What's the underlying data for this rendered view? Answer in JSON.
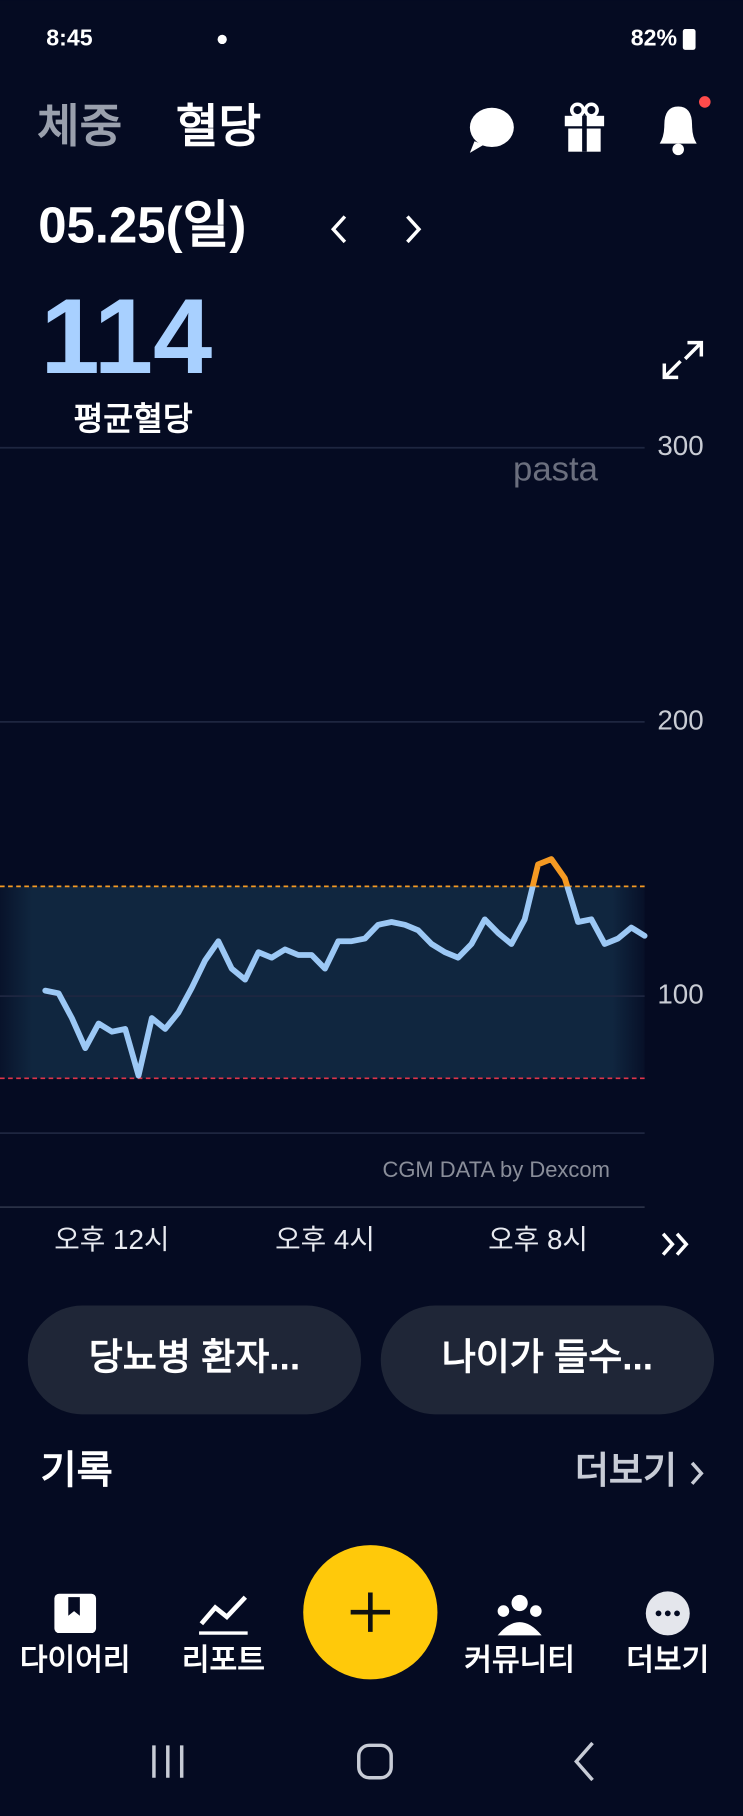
{
  "status_bar": {
    "time": "8:45",
    "battery": "82%"
  },
  "header": {
    "tabs": [
      "체중",
      "혈당"
    ]
  },
  "summary": {
    "date": "05.25(일)",
    "average": 114,
    "average_label": "평균혈당"
  },
  "chart_data": {
    "type": "line",
    "watermark": "pasta",
    "source": "CGM DATA by Dexcom",
    "xlim": [
      9.9,
      22
    ],
    "ylim": [
      23,
      305
    ],
    "yticks": [
      100,
      200,
      300
    ],
    "xticks": [
      {
        "value": 12,
        "label": "오후 12시"
      },
      {
        "value": 16,
        "label": "오후 4시"
      },
      {
        "value": 20,
        "label": "오후 8시"
      }
    ],
    "target_range": [
      70,
      140
    ],
    "high_color": "#f59a23",
    "low_line_color": "#e0344a",
    "grid": true,
    "series": [
      {
        "color": "#9cc8f5",
        "x": [
          10.75,
          11,
          11.25,
          11.5,
          11.75,
          12,
          12.25,
          12.5,
          12.75,
          13,
          13.25,
          13.5,
          13.75,
          14,
          14.25,
          14.5,
          14.75,
          15,
          15.25,
          15.5,
          15.75,
          16,
          16.25,
          16.5,
          16.75,
          17,
          17.25,
          17.5,
          17.75,
          18,
          18.25,
          18.5,
          18.75,
          19,
          19.25,
          19.5,
          19.75,
          20,
          20.25,
          20.5,
          20.75,
          21,
          21.25,
          21.5,
          21.75,
          22
        ],
        "values": [
          102,
          101,
          92,
          81,
          90,
          87,
          88,
          71,
          92,
          88,
          94,
          103,
          113,
          120,
          110,
          106,
          116,
          114,
          117,
          115,
          115,
          110,
          120,
          120,
          121,
          126,
          127,
          126,
          124,
          119,
          116,
          114,
          119,
          128,
          123,
          119,
          128,
          148,
          150,
          143,
          127,
          128,
          119,
          121,
          125,
          122
        ]
      }
    ]
  },
  "cards": [
    "당뇨병 환자...",
    "나이가 들수..."
  ],
  "records": {
    "title": "기록",
    "more": "더보기"
  },
  "nav": {
    "items": [
      "다이어리",
      "리포트",
      "커뮤니티",
      "더보기"
    ]
  }
}
